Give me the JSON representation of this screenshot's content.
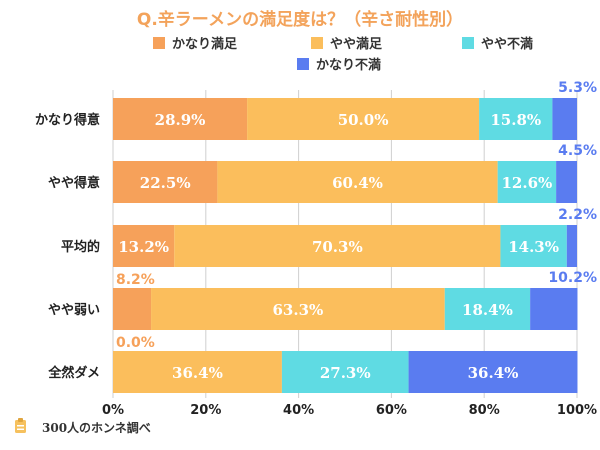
{
  "chart_data": {
    "type": "bar",
    "orientation": "horizontal",
    "stacked": true,
    "title": "Q.辛ラーメンの満足度は？（辛さ耐性別）",
    "categories": [
      "かなり得意",
      "やや得意",
      "平均的",
      "やや弱い",
      "全然ダメ"
    ],
    "series": [
      {
        "name": "かなり満足",
        "color": "#f6a15a",
        "values": [
          28.9,
          22.5,
          13.2,
          8.2,
          0.0
        ],
        "labels": [
          "28.9%",
          "22.5%",
          "13.2%",
          "8.2%",
          "0.0%"
        ]
      },
      {
        "name": "やや満足",
        "color": "#fbbe5c",
        "values": [
          50.0,
          60.4,
          70.3,
          63.3,
          36.4
        ],
        "labels": [
          "50.0%",
          "60.4%",
          "70.3%",
          "63.3%",
          "36.4%"
        ]
      },
      {
        "name": "やや不満",
        "color": "#5fdbe3",
        "values": [
          15.8,
          12.6,
          14.3,
          18.4,
          27.3
        ],
        "labels": [
          "15.8%",
          "12.6%",
          "14.3%",
          "18.4%",
          "27.3%"
        ]
      },
      {
        "name": "かなり不満",
        "color": "#5a7cf0",
        "values": [
          5.3,
          4.5,
          2.2,
          10.2,
          36.4
        ],
        "labels": [
          "5.3%",
          "4.5%",
          "2.2%",
          "10.2%",
          "36.4%"
        ]
      }
    ],
    "xlim": [
      0,
      100
    ],
    "xticks": [
      "0%",
      "20%",
      "40%",
      "60%",
      "80%",
      "100%"
    ],
    "xtick_values": [
      0,
      20,
      40,
      60,
      80,
      100
    ],
    "legend_position": "top",
    "grid": true
  },
  "footnote": "300人のホンネ調べ",
  "colors": {
    "title": "#f3a35b",
    "grid": "#cfcfcf",
    "outside_orange": "#f6a15a",
    "outside_blue": "#5a7cf0"
  },
  "icons": {
    "footnote": "clipboard-icon"
  }
}
